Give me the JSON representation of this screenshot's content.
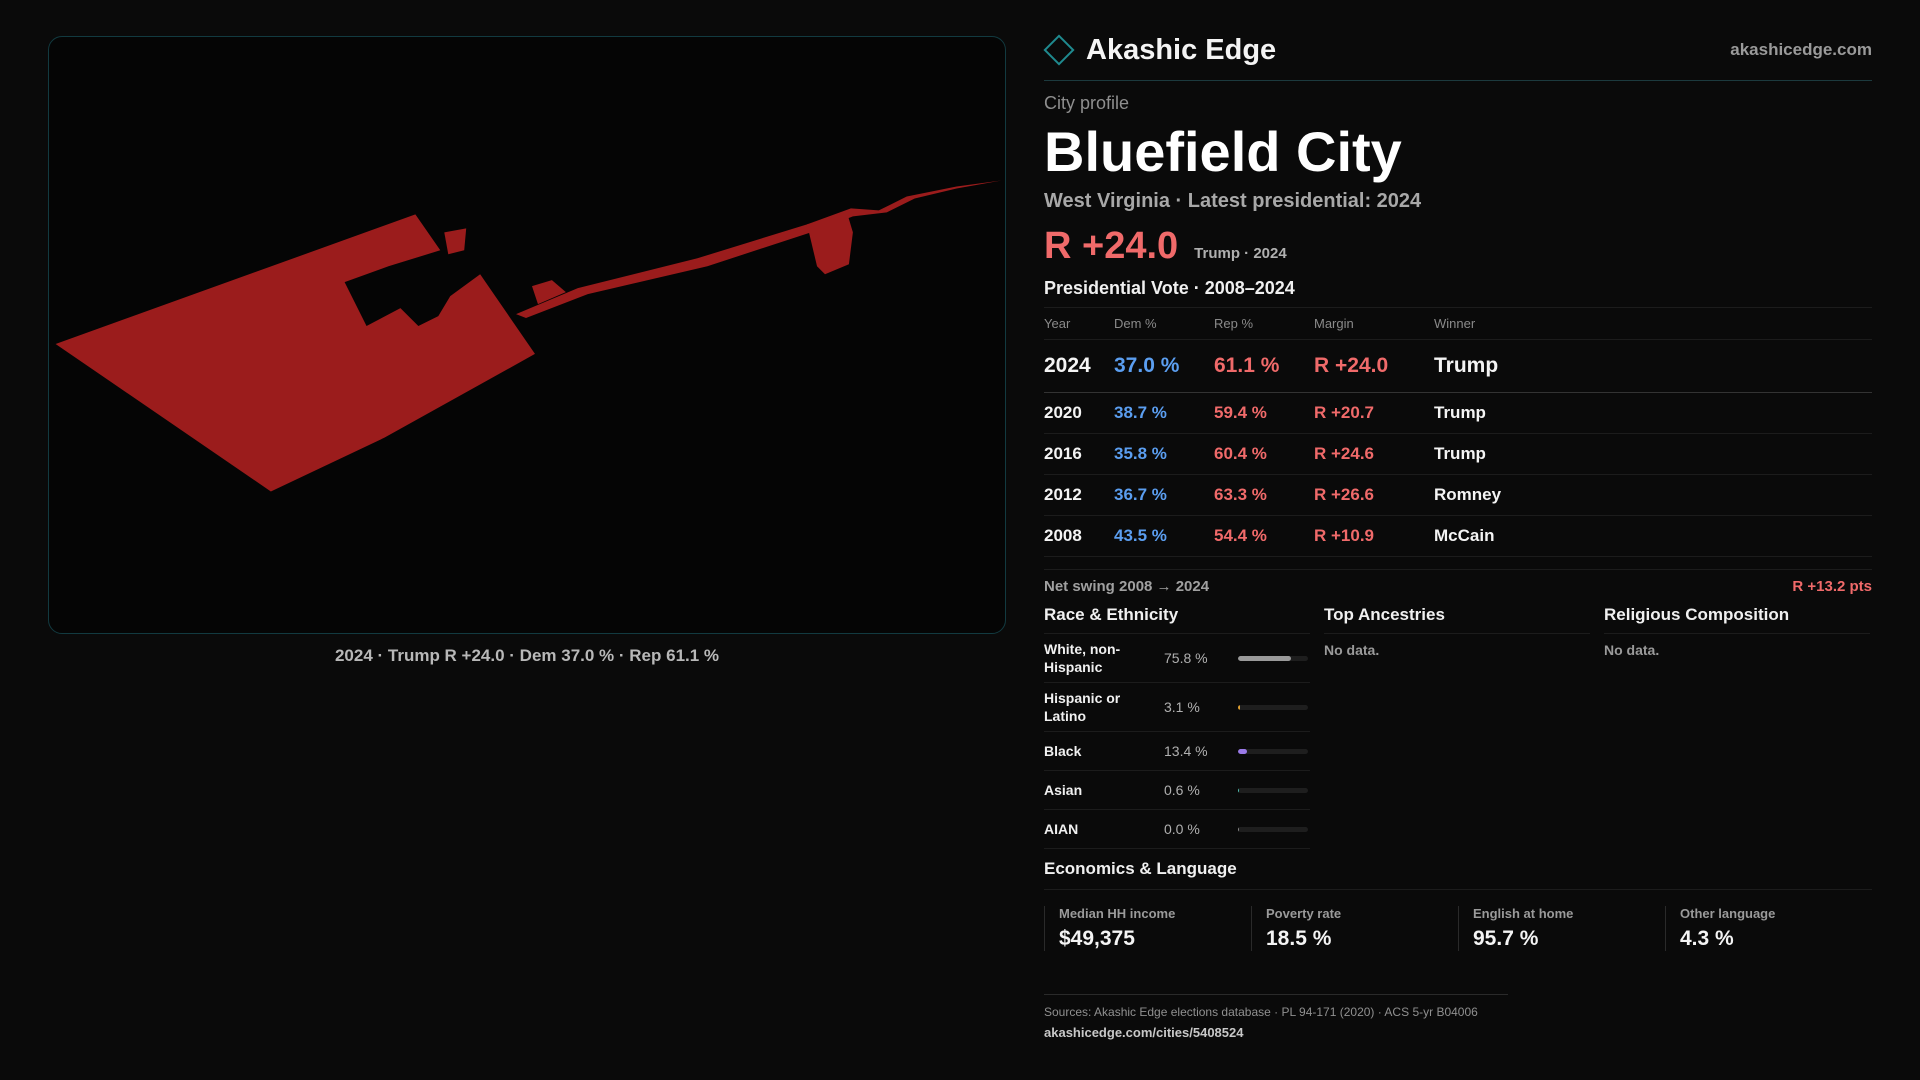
{
  "brand": {
    "name": "Akashic Edge",
    "domain": "akashicedge.com",
    "icon": "diamond-icon",
    "accent": "#1f8a8f"
  },
  "profile": {
    "eyebrow": "City profile",
    "city": "Bluefield City",
    "subtitle": "West Virginia · Latest presidential: 2024",
    "margin": "R +24.0",
    "margin_note": "Trump · 2024"
  },
  "map": {
    "caption": "2024 · Trump R +24.0 · Dem 37.0 % · Rep 61.1 %",
    "fill_color": "#9b1c1c"
  },
  "votes": {
    "title": "Presidential Vote · 2008–2024",
    "headers": [
      "Year",
      "Dem %",
      "Rep %",
      "Margin",
      "Winner"
    ],
    "rows": [
      {
        "year": "2024",
        "dem": "37.0 %",
        "rep": "61.1 %",
        "margin": "R +24.0",
        "winner": "Trump"
      },
      {
        "year": "2020",
        "dem": "38.7 %",
        "rep": "59.4 %",
        "margin": "R +20.7",
        "winner": "Trump"
      },
      {
        "year": "2016",
        "dem": "35.8 %",
        "rep": "60.4 %",
        "margin": "R +24.6",
        "winner": "Trump"
      },
      {
        "year": "2012",
        "dem": "36.7 %",
        "rep": "63.3 %",
        "margin": "R +26.6",
        "winner": "Romney"
      },
      {
        "year": "2008",
        "dem": "43.5 %",
        "rep": "54.4 %",
        "margin": "R +10.9",
        "winner": "McCain"
      }
    ],
    "swing_label": "Net swing 2008 → 2024",
    "swing_value": "R +13.2 pts"
  },
  "race": {
    "title": "Race & Ethnicity",
    "rows": [
      {
        "label": "White, non-Hispanic",
        "pct": "75.8 %",
        "value": 75.8,
        "color": "#9a9a9a"
      },
      {
        "label": "Hispanic or Latino",
        "pct": "3.1 %",
        "value": 3.1,
        "color": "#e0a030"
      },
      {
        "label": "Black",
        "pct": "13.4 %",
        "value": 13.4,
        "color": "#9a7ae8"
      },
      {
        "label": "Asian",
        "pct": "0.6 %",
        "value": 0.6,
        "color": "#4fc0b0"
      },
      {
        "label": "AIAN",
        "pct": "0.0 %",
        "value": 0.0,
        "color": "#888888"
      }
    ]
  },
  "ancestries": {
    "title": "Top Ancestries",
    "empty": "No data."
  },
  "religion": {
    "title": "Religious Composition",
    "empty": "No data."
  },
  "economics": {
    "title": "Economics & Language",
    "cells": [
      {
        "label": "Median HH income",
        "value": "$49,375"
      },
      {
        "label": "Poverty rate",
        "value": "18.5 %"
      },
      {
        "label": "English at home",
        "value": "95.7 %"
      },
      {
        "label": "Other language",
        "value": "4.3 %"
      }
    ]
  },
  "footer": {
    "sources": "Sources: Akashic Edge elections database · PL 94-171 (2020) · ACS 5-yr B04006",
    "url": "akashicedge.com/cities/5408524"
  }
}
